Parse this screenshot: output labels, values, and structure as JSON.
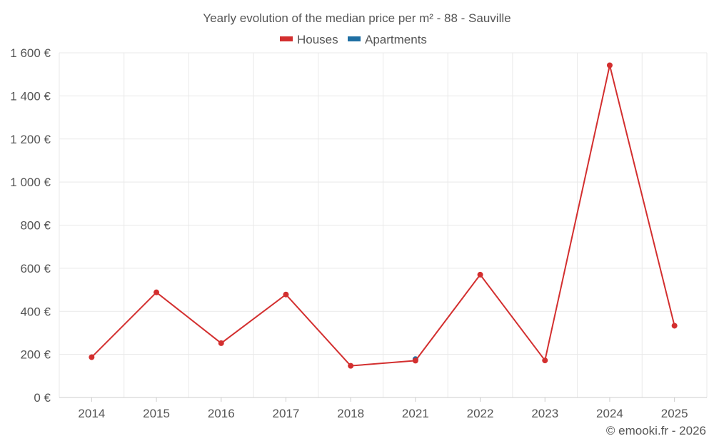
{
  "chart_data": {
    "type": "line",
    "title": "Yearly evolution of the median price per m² - 88 - Sauville",
    "categories": [
      "2014",
      "2015",
      "2016",
      "2017",
      "2018",
      "2021",
      "2022",
      "2023",
      "2024",
      "2025"
    ],
    "y_ticks": [
      "0 €",
      "200 €",
      "400 €",
      "600 €",
      "800 €",
      "1 000 €",
      "1 200 €",
      "1 400 €",
      "1 600 €"
    ],
    "ylim": [
      0,
      1600
    ],
    "grid": true,
    "legend_position": "top-center",
    "series": [
      {
        "name": "Houses",
        "color": "#d32f2f",
        "values": [
          187,
          488,
          252,
          478,
          147,
          171,
          570,
          172,
          1542,
          333
        ]
      },
      {
        "name": "Apartments",
        "color": "#1f6fa3",
        "values": [
          null,
          null,
          null,
          null,
          null,
          178,
          null,
          null,
          null,
          null
        ]
      }
    ]
  },
  "credit": "© emooki.fr - 2026"
}
